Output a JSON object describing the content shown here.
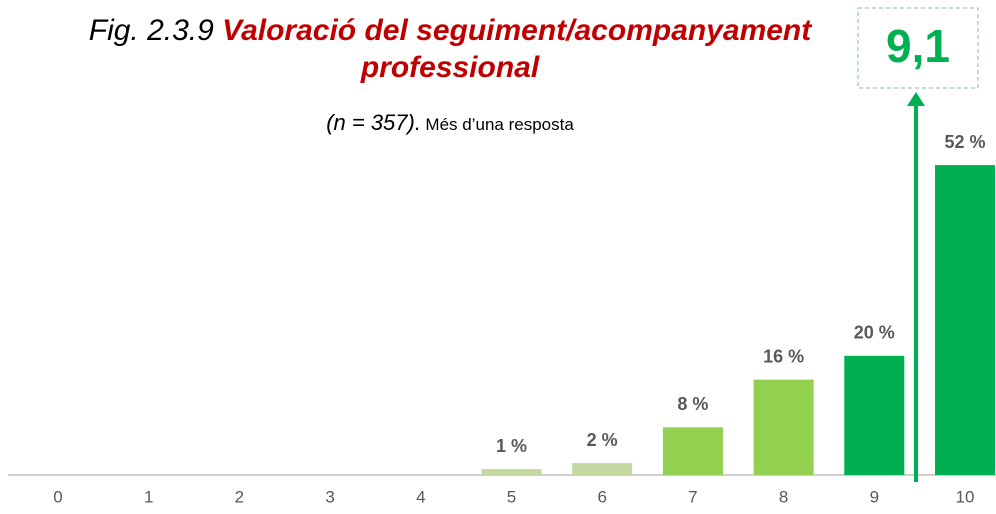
{
  "chart_data": {
    "type": "bar",
    "title_prefix": "Fig. 2.3.9",
    "title": "Valoració del seguiment/acompanyament professional",
    "subtitle_n": "(n = 357).",
    "subtitle_note": "Més d’una resposta",
    "annotation": "9,1",
    "categories": [
      "0",
      "1",
      "2",
      "3",
      "4",
      "5",
      "6",
      "7",
      "8",
      "9",
      "10"
    ],
    "values": [
      0,
      0,
      0,
      0,
      0,
      1,
      2,
      8,
      16,
      20,
      52
    ],
    "value_labels": [
      null,
      null,
      null,
      null,
      null,
      "1 %",
      "2 %",
      "8 %",
      "16 %",
      "20 %",
      "52 %"
    ],
    "colors": [
      "#c4d9a0",
      "#c4d9a0",
      "#c4d9a0",
      "#c4d9a0",
      "#c4d9a0",
      "#c4d9a0",
      "#c4d9a0",
      "#92d050",
      "#92d050",
      "#00b050",
      "#00b050"
    ]
  }
}
